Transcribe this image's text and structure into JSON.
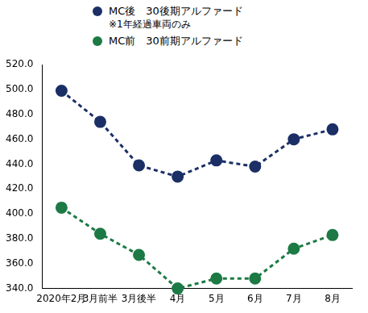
{
  "chart_data": {
    "type": "line",
    "categories": [
      "2020年2月",
      "3月前半",
      "3月後半",
      "4月",
      "5月",
      "6月",
      "7月",
      "8月"
    ],
    "series": [
      {
        "name": "MC後　30後期アルファード",
        "color": "#1b2f66",
        "values": [
          499,
          474,
          439,
          430,
          443,
          438,
          460,
          468
        ]
      },
      {
        "name": "MC前　30前期アルファード",
        "color": "#1d7a45",
        "values": [
          405,
          384,
          367,
          340,
          348,
          348,
          372,
          383
        ]
      }
    ],
    "annotations": [
      "※1年経過車両のみ"
    ],
    "ylim": [
      340,
      520
    ],
    "yticks": [
      {
        "value": 340,
        "label": "340.0"
      },
      {
        "value": 360,
        "label": "360.0"
      },
      {
        "value": 380,
        "label": "380.0"
      },
      {
        "value": 400,
        "label": "400.0"
      },
      {
        "value": 420,
        "label": "420.0"
      },
      {
        "value": 440,
        "label": "440.0"
      },
      {
        "value": 460,
        "label": "460.0"
      },
      {
        "value": 480,
        "label": "480.0"
      },
      {
        "value": 500,
        "label": "500.0"
      },
      {
        "value": 520,
        "label": "520.0"
      }
    ],
    "grid": false,
    "legend": "top",
    "marker": "circle",
    "line_style": "dashed"
  }
}
